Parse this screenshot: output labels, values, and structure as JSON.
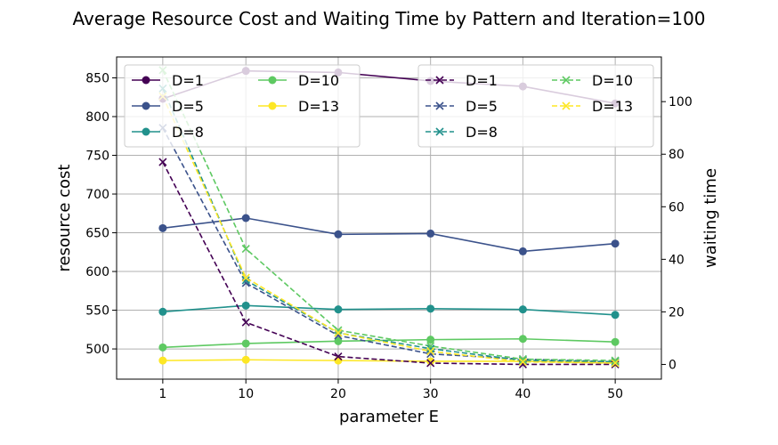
{
  "chart_data": {
    "type": "line",
    "title": "Average Resource Cost and Waiting Time by Pattern and Iteration=100",
    "xlabel": "parameter E",
    "ylabel_left": "resource cost",
    "ylabel_right": "waiting time",
    "x": [
      1,
      10,
      20,
      30,
      40,
      50
    ],
    "x_ticks": [
      "1",
      "10",
      "20",
      "30",
      "40",
      "50"
    ],
    "xlim": [
      -4,
      55
    ],
    "ylim_left": [
      461,
      877
    ],
    "ylim_right": [
      -5.6,
      117
    ],
    "left_ticks": [
      500,
      550,
      600,
      650,
      700,
      750,
      800,
      850
    ],
    "right_ticks": [
      0,
      20,
      40,
      60,
      80,
      100
    ],
    "grid": true,
    "series_resource": [
      {
        "name": "D=1",
        "color": "#440154",
        "values": [
          823,
          859,
          857,
          846,
          839,
          817
        ]
      },
      {
        "name": "D=5",
        "color": "#3b528b",
        "values": [
          656,
          669,
          648,
          649,
          626,
          636
        ]
      },
      {
        "name": "D=8",
        "color": "#21918c",
        "values": [
          548,
          556,
          551,
          552,
          551,
          544
        ]
      },
      {
        "name": "D=10",
        "color": "#5ec962",
        "values": [
          502,
          507,
          510,
          512,
          513,
          509
        ]
      },
      {
        "name": "D=13",
        "color": "#fde725",
        "values": [
          485,
          486,
          485,
          484,
          484,
          482
        ]
      }
    ],
    "series_waiting": [
      {
        "name": "D=1",
        "color": "#440154",
        "values": [
          77,
          16,
          3,
          0.5,
          0,
          0
        ]
      },
      {
        "name": "D=5",
        "color": "#3b528b",
        "values": [
          90,
          31,
          11,
          4,
          2,
          1
        ]
      },
      {
        "name": "D=8",
        "color": "#21918c",
        "values": [
          105,
          32,
          12,
          6,
          1.5,
          1
        ]
      },
      {
        "name": "D=10",
        "color": "#5ec962",
        "values": [
          112,
          44,
          13,
          7,
          2,
          1.5
        ]
      },
      {
        "name": "D=13",
        "color": "#fde725",
        "values": [
          102,
          33,
          12,
          5,
          1,
          0.5
        ]
      }
    ],
    "legend_left_placement": "top-left",
    "legend_right_placement": "top-right"
  }
}
